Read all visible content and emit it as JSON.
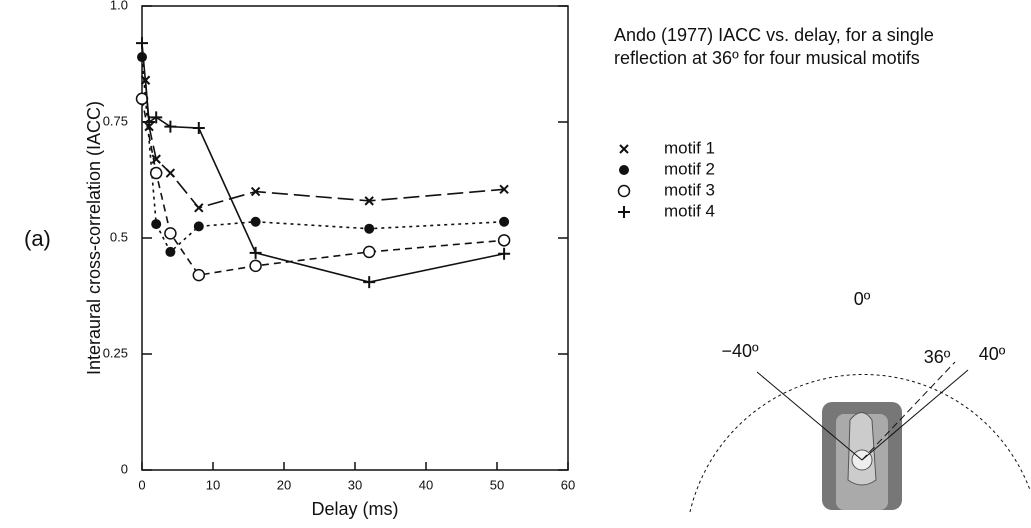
{
  "chart_data": {
    "type": "line",
    "title": "Ando (1977) IACC vs. delay, for a single reflection at 36º for four musical motifs",
    "panel_label": "(a)",
    "xlabel": "Delay (ms)",
    "ylabel": "Interaural cross-correlation (IACC)",
    "xlim": [
      0,
      60
    ],
    "xticks": [
      0,
      10,
      20,
      30,
      40,
      50,
      60
    ],
    "ylim": [
      0,
      1
    ],
    "yticks": [
      0,
      0.25,
      0.5,
      0.75,
      {
        "value": 1,
        "label": "1.0"
      }
    ],
    "series": [
      {
        "name": "motif 1",
        "color": "#111111",
        "marker": "x",
        "line_style": "long-dash",
        "x": [
          0.5,
          1,
          2,
          4,
          8,
          16,
          32,
          51
        ],
        "values": [
          0.84,
          0.74,
          0.67,
          0.64,
          0.565,
          0.6,
          0.58,
          0.605
        ]
      },
      {
        "name": "motif 2",
        "color": "#111111",
        "marker": "filled-circle",
        "line_style": "dotted",
        "x": [
          0,
          2,
          4,
          8,
          16,
          32,
          51
        ],
        "values": [
          0.89,
          0.53,
          0.47,
          0.525,
          0.535,
          0.52,
          0.535
        ]
      },
      {
        "name": "motif 3",
        "color": "#111111",
        "marker": "circle",
        "line_style": "short-dash",
        "x": [
          0,
          2,
          4,
          8,
          16,
          32,
          51
        ],
        "values": [
          0.8,
          0.64,
          0.51,
          0.42,
          0.44,
          0.47,
          0.495
        ]
      },
      {
        "name": "motif 4",
        "color": "#111111",
        "marker": "plus",
        "line_style": "solid",
        "x": [
          0,
          1,
          2,
          4,
          8,
          16,
          32,
          51
        ],
        "values": [
          0.92,
          0.75,
          0.76,
          0.74,
          0.737,
          0.468,
          0.405,
          0.466
        ]
      }
    ],
    "annotations": [
      "0º",
      "−40º",
      "36º",
      "40º"
    ]
  }
}
